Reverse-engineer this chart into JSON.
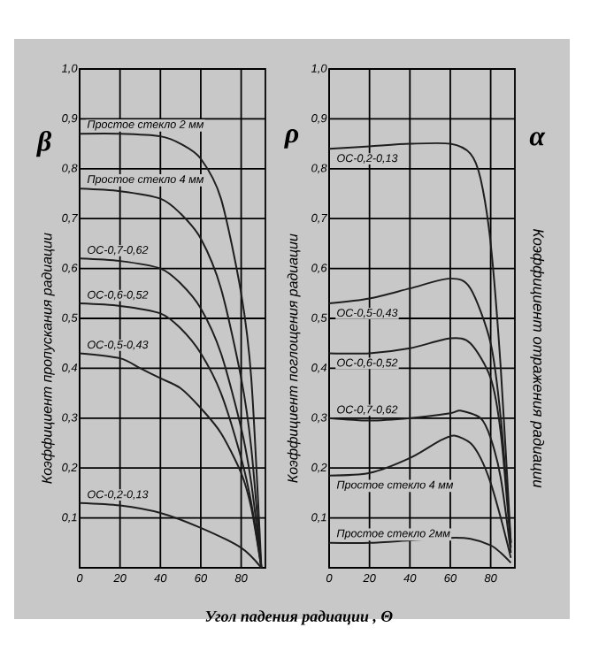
{
  "chart_data": [
    {
      "type": "line",
      "ylabel": "Коэффициент пропускания радиации",
      "xlabel": "Угол падения радиации , Θ",
      "annotations": [
        "β"
      ],
      "xlim": [
        0,
        92
      ],
      "ylim": [
        0,
        1
      ],
      "grid": true,
      "marker": "none",
      "xticks": [
        0,
        20,
        40,
        60,
        80
      ],
      "yticks": [
        {
          "value": 0.1,
          "label": "0,1"
        },
        {
          "value": 0.2,
          "label": "0,2"
        },
        {
          "value": 0.3,
          "label": "0,3"
        },
        {
          "value": 0.4,
          "label": "0,4"
        },
        {
          "value": 0.5,
          "label": "0,5"
        },
        {
          "value": 0.6,
          "label": "0,6"
        },
        {
          "value": 0.7,
          "label": "0,7"
        },
        {
          "value": 0.8,
          "label": "0,8"
        },
        {
          "value": 0.9,
          "label": "0,9"
        },
        {
          "value": 1.0,
          "label": "1,0"
        }
      ],
      "series": [
        {
          "name": "Простое стекло 2 мм",
          "color": "#1e1e1e",
          "x": [
            0,
            20,
            40,
            50,
            60,
            70,
            80,
            85,
            90
          ],
          "values": [
            0.87,
            0.87,
            0.865,
            0.85,
            0.82,
            0.74,
            0.55,
            0.38,
            0
          ]
        },
        {
          "name": "Простое стекло 4 мм",
          "color": "#1e1e1e",
          "x": [
            0,
            20,
            40,
            50,
            60,
            70,
            80,
            85,
            90
          ],
          "values": [
            0.76,
            0.755,
            0.74,
            0.71,
            0.66,
            0.56,
            0.38,
            0.24,
            0
          ]
        },
        {
          "name": "ОС-0,7-0,62",
          "color": "#1e1e1e",
          "x": [
            0,
            20,
            40,
            50,
            60,
            70,
            80,
            85,
            90
          ],
          "values": [
            0.62,
            0.615,
            0.6,
            0.57,
            0.52,
            0.43,
            0.28,
            0.17,
            0
          ]
        },
        {
          "name": "ОС-0,6-0,52",
          "color": "#1e1e1e",
          "x": [
            0,
            20,
            40,
            50,
            60,
            70,
            80,
            85,
            90
          ],
          "values": [
            0.53,
            0.525,
            0.51,
            0.48,
            0.43,
            0.35,
            0.22,
            0.13,
            0
          ]
        },
        {
          "name": "ОС-0,5-0,43",
          "color": "#1e1e1e",
          "x": [
            0,
            20,
            30,
            40,
            50,
            60,
            70,
            80,
            85,
            90
          ],
          "values": [
            0.43,
            0.42,
            0.4,
            0.38,
            0.36,
            0.32,
            0.27,
            0.19,
            0.12,
            0
          ]
        },
        {
          "name": "ОС-0,2-0,13",
          "color": "#1e1e1e",
          "x": [
            0,
            20,
            40,
            60,
            80,
            90
          ],
          "values": [
            0.13,
            0.125,
            0.11,
            0.08,
            0.04,
            0
          ]
        }
      ]
    },
    {
      "type": "line",
      "ylabel": "Коэффициент поглощения радиации",
      "y2label": "Коэффициент отражения радиации",
      "annotations": [
        "ρ",
        "α"
      ],
      "xlim": [
        0,
        92
      ],
      "ylim": [
        0,
        1
      ],
      "grid": true,
      "marker": "none",
      "xticks": [
        0,
        20,
        40,
        60,
        80
      ],
      "yticks": [
        {
          "value": 0.1,
          "label": "0,1"
        },
        {
          "value": 0.2,
          "label": "0,2"
        },
        {
          "value": 0.3,
          "label": "0,3"
        },
        {
          "value": 0.4,
          "label": "0,4"
        },
        {
          "value": 0.5,
          "label": "0,5"
        },
        {
          "value": 0.6,
          "label": "0,6"
        },
        {
          "value": 0.7,
          "label": "0,7"
        },
        {
          "value": 0.8,
          "label": "0,8"
        },
        {
          "value": 0.9,
          "label": "0,9"
        },
        {
          "value": 1.0,
          "label": "1,0"
        }
      ],
      "series": [
        {
          "name": "ОС-0,2-0,13",
          "color": "#1e1e1e",
          "x": [
            0,
            20,
            40,
            60,
            70,
            75,
            80,
            85,
            90
          ],
          "values": [
            0.84,
            0.845,
            0.85,
            0.85,
            0.83,
            0.78,
            0.65,
            0.4,
            0.05
          ]
        },
        {
          "name": "ОС-0,5-0,43",
          "color": "#1e1e1e",
          "x": [
            0,
            20,
            40,
            60,
            70,
            80,
            85,
            90
          ],
          "values": [
            0.53,
            0.54,
            0.56,
            0.58,
            0.56,
            0.45,
            0.3,
            0.05
          ]
        },
        {
          "name": "ОС-0,6-0,52",
          "color": "#1e1e1e",
          "x": [
            0,
            20,
            40,
            60,
            70,
            80,
            85,
            90
          ],
          "values": [
            0.43,
            0.43,
            0.44,
            0.46,
            0.45,
            0.38,
            0.27,
            0.04
          ]
        },
        {
          "name": "ОС-0,7-0,62",
          "color": "#1e1e1e",
          "x": [
            0,
            20,
            40,
            60,
            65,
            75,
            80,
            85,
            90
          ],
          "values": [
            0.3,
            0.295,
            0.3,
            0.31,
            0.315,
            0.3,
            0.26,
            0.18,
            0.03
          ]
        },
        {
          "name": "Простое стекло 4 мм",
          "color": "#1e1e1e",
          "x": [
            0,
            20,
            40,
            55,
            62,
            70,
            75,
            80,
            85,
            90
          ],
          "values": [
            0.185,
            0.19,
            0.22,
            0.255,
            0.265,
            0.25,
            0.22,
            0.17,
            0.1,
            0.02
          ]
        },
        {
          "name": "Простое стекло 2мм",
          "color": "#1e1e1e",
          "x": [
            0,
            20,
            40,
            60,
            70,
            80,
            85,
            90
          ],
          "values": [
            0.05,
            0.05,
            0.055,
            0.06,
            0.058,
            0.045,
            0.03,
            0.01
          ]
        }
      ]
    }
  ]
}
